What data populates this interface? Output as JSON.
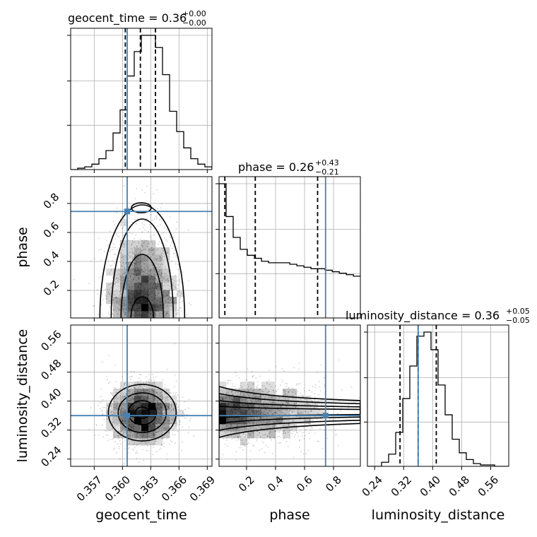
{
  "chart_data": {
    "type": "corner",
    "parameters": [
      "geocent_time",
      "phase",
      "luminosity_distance"
    ],
    "truths": {
      "geocent_time": 0.3605,
      "phase": 0.745,
      "luminosity_distance": 0.36
    },
    "colors": {
      "truth": "#4682b4",
      "contour": "#000000",
      "hist": "#000000",
      "grid": "#b0b0b0"
    },
    "grid": true,
    "axes": {
      "geocent_time": {
        "range": [
          0.3545,
          0.3695
        ],
        "ticks": [
          "0.357",
          "0.360",
          "0.363",
          "0.366",
          "0.369"
        ],
        "tick_values": [
          0.357,
          0.36,
          0.363,
          0.366,
          0.369
        ]
      },
      "phase": {
        "range": [
          0.01,
          0.985
        ],
        "ticks": [
          "0.2",
          "0.4",
          "0.6",
          "0.8"
        ],
        "tick_values": [
          0.2,
          0.4,
          0.6,
          0.8
        ]
      },
      "luminosity_distance": {
        "range": [
          0.22,
          0.61
        ],
        "ticks": [
          "0.24",
          "0.32",
          "0.40",
          "0.48",
          "0.56"
        ],
        "tick_values": [
          0.24,
          0.32,
          0.4,
          0.48,
          0.56
        ]
      }
    },
    "titles": [
      {
        "param": "geocent_time",
        "label": "geocent_time = 0.36",
        "plus": "+0.00",
        "minus": "−0.00"
      },
      {
        "param": "phase",
        "label": "phase = 0.26",
        "plus": "+0.43",
        "minus": "−0.21"
      },
      {
        "param": "luminosity_distance",
        "label": "luminosity_distance = 0.36",
        "plus": "+0.05",
        "minus": "−0.05"
      }
    ],
    "axis_labels": {
      "x": [
        "geocent_time",
        "phase",
        "luminosity_distance"
      ],
      "y": [
        "phase",
        "luminosity_distance"
      ]
    },
    "histograms": {
      "geocent_time": {
        "edges_start": 0.3545,
        "bin_width": 0.00075,
        "counts": [
          0,
          1,
          2,
          4,
          8,
          14,
          27,
          44,
          69,
          87,
          99,
          99,
          90,
          70,
          43,
          28,
          16,
          8,
          4,
          2,
          1
        ],
        "quantiles": [
          0.3603,
          0.3619,
          0.3635
        ]
      },
      "phase": {
        "edges_start": 0.01,
        "bin_width": 0.0488,
        "counts": [
          90,
          68,
          54,
          46,
          42,
          40,
          38,
          37,
          37,
          37,
          36,
          35,
          34,
          33,
          33,
          32,
          31,
          30,
          29,
          28
        ],
        "quantiles": [
          0.05,
          0.26,
          0.69
        ]
      },
      "luminosity_distance": {
        "edges_start": 0.22,
        "bin_width": 0.0195,
        "counts": [
          0,
          0,
          3,
          9,
          25,
          50,
          74,
          96,
          99,
          86,
          60,
          38,
          20,
          10,
          5,
          2,
          1,
          1,
          0,
          0
        ],
        "quantiles": [
          0.31,
          0.36,
          0.41
        ]
      }
    },
    "quantiles": [
      0.16,
      0.5,
      0.84
    ]
  }
}
